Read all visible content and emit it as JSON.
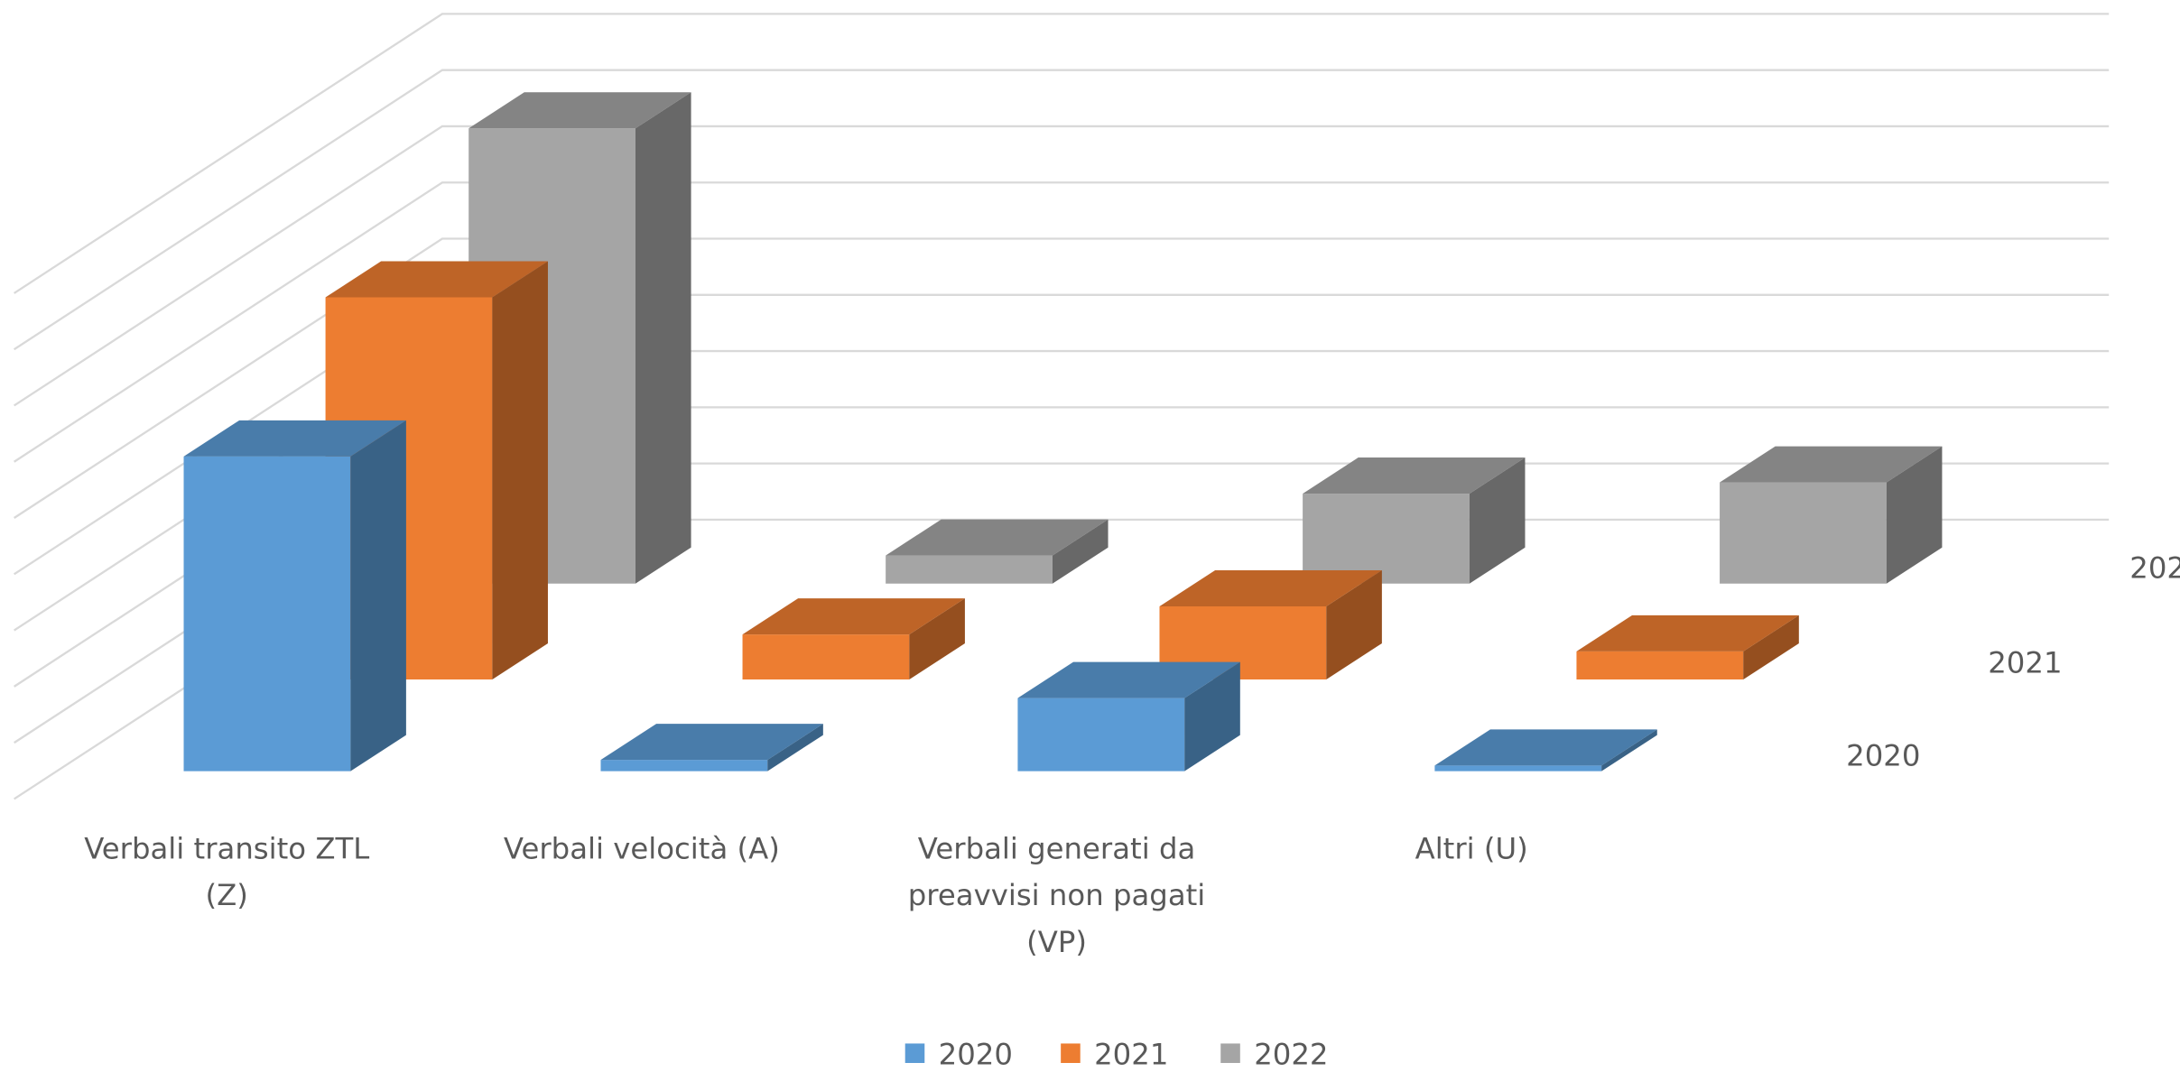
{
  "chart_data": {
    "type": "bar3d",
    "categories": [
      "Verbali transito ZTL (Z)",
      "Verbali velocità (A)",
      "Verbali generati da preavvisi non pagati (VP)",
      "Altri (U)"
    ],
    "series": [
      {
        "name": "2020",
        "color": "#5b9bd5",
        "values": [
          5.6,
          0.2,
          1.3,
          0.1
        ]
      },
      {
        "name": "2021",
        "color": "#ed7d31",
        "values": [
          6.8,
          0.8,
          1.3,
          0.5
        ]
      },
      {
        "name": "2022",
        "color": "#a5a5a5",
        "values": [
          8.1,
          0.5,
          1.6,
          1.8
        ]
      }
    ],
    "ylim": [
      0,
      9
    ],
    "yticks": [
      0,
      1,
      2,
      3,
      4,
      5,
      6,
      7,
      8,
      9
    ],
    "grid": true,
    "legend": "bottom"
  }
}
